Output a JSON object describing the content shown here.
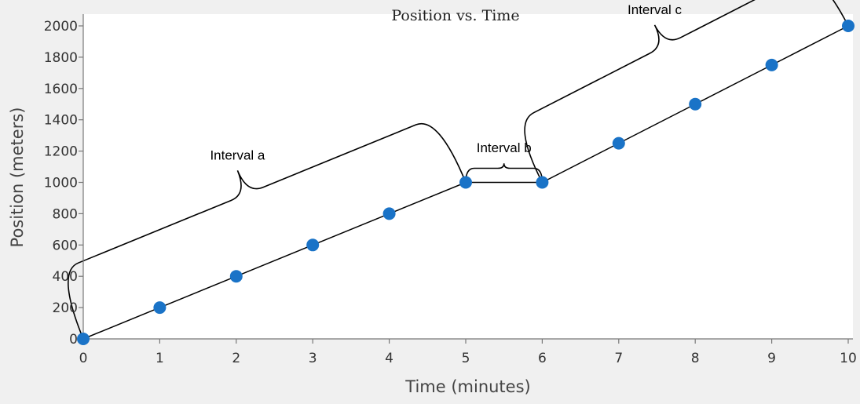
{
  "chart_data": {
    "type": "line",
    "title": "Position vs. Time",
    "xlabel": "Time (minutes)",
    "ylabel": "Position (meters)",
    "xlim": [
      0,
      10
    ],
    "ylim": [
      0,
      2000
    ],
    "x_ticks": [
      0,
      1,
      2,
      3,
      4,
      5,
      6,
      7,
      8,
      9,
      10
    ],
    "y_ticks": [
      0,
      200,
      400,
      600,
      800,
      1000,
      1200,
      1400,
      1600,
      1800,
      2000
    ],
    "grid": false,
    "series": [
      {
        "x": [
          0,
          1,
          2,
          3,
          4,
          5,
          6,
          7,
          8,
          9,
          10
        ],
        "values": [
          0,
          200,
          400,
          600,
          800,
          1000,
          1000,
          1250,
          1500,
          1750,
          2000
        ]
      }
    ],
    "annotations": [
      {
        "label": "Interval a",
        "x_start": 0,
        "x_end": 5
      },
      {
        "label": "Interval b",
        "x_start": 5,
        "x_end": 6
      },
      {
        "label": "Interval c",
        "x_start": 6,
        "x_end": 10
      }
    ],
    "colors": {
      "marker": "#1a73c7",
      "line": "#000000",
      "plot_bg": "#ffffff",
      "frame_bg": "#f0f0f0"
    }
  }
}
